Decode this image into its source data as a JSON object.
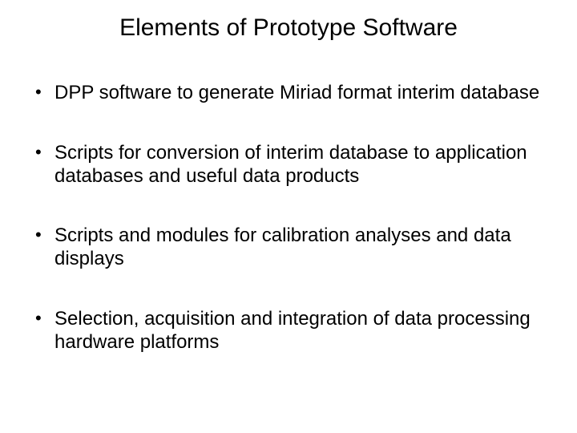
{
  "title": "Elements of Prototype Software",
  "bullets": [
    "DPP software to generate Miriad format interim database",
    "Scripts for conversion of interim database to application databases and useful data products",
    "Scripts and modules for calibration analyses and data displays",
    "Selection, acquisition and integration of data processing hardware platforms"
  ],
  "colors": {
    "background": "#ffffff",
    "text": "#000000"
  },
  "typography": {
    "title_fontsize": 30,
    "body_fontsize": 24,
    "font_family": "Arial"
  }
}
